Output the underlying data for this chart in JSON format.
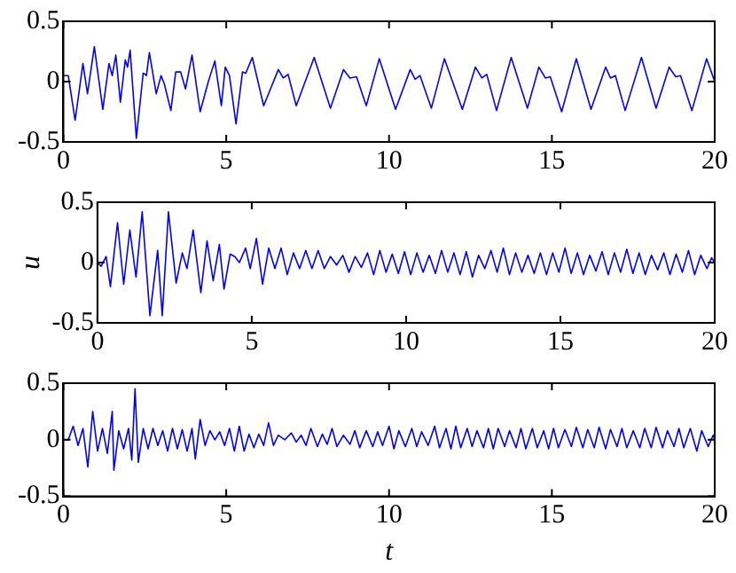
{
  "chart_data": [
    {
      "type": "line",
      "color": "#0000ff",
      "xlim": [
        0,
        20
      ],
      "ylim": [
        -0.5,
        0.5
      ],
      "xticks": [
        0,
        5,
        10,
        15,
        20
      ],
      "yticks": [
        -0.5,
        0,
        0.5
      ],
      "grid": false,
      "legend": false,
      "marker": "none",
      "line_style": "solid",
      "x": [
        0,
        0.15,
        0.36,
        0.6,
        0.74,
        0.95,
        1.21,
        1.4,
        1.5,
        1.61,
        1.75,
        1.9,
        1.97,
        2.05,
        2.24,
        2.45,
        2.55,
        2.64,
        2.85,
        3.0,
        3.1,
        3.3,
        3.45,
        3.6,
        3.75,
        3.95,
        4.2,
        4.45,
        4.65,
        4.85,
        4.97,
        5.1,
        5.3,
        5.5,
        5.6,
        5.8,
        6.15,
        6.6,
        6.75,
        6.9,
        7.15,
        7.7,
        8.2,
        8.6,
        8.8,
        9.0,
        9.3,
        9.7,
        10.2,
        10.65,
        10.8,
        10.95,
        11.3,
        11.7,
        12.25,
        12.65,
        12.85,
        13.0,
        13.3,
        13.75,
        14.25,
        14.6,
        14.8,
        14.95,
        15.3,
        15.75,
        16.2,
        16.65,
        16.8,
        16.95,
        17.25,
        17.75,
        18.2,
        18.6,
        18.8,
        18.95,
        19.3,
        19.75,
        20
      ],
      "values": [
        0.05,
        0.05,
        -0.32,
        0.15,
        -0.1,
        0.29,
        -0.23,
        0.15,
        0.05,
        0.22,
        -0.17,
        0.18,
        0.12,
        0.26,
        -0.47,
        0.07,
        0.05,
        0.24,
        -0.1,
        0.05,
        -0.02,
        -0.24,
        0.08,
        0.08,
        -0.06,
        0.22,
        -0.25,
        0.0,
        0.17,
        -0.2,
        0.12,
        0.05,
        -0.35,
        0.08,
        0.07,
        0.2,
        -0.2,
        0.1,
        0.03,
        0.06,
        -0.2,
        0.2,
        -0.22,
        0.1,
        0.03,
        0.04,
        -0.2,
        0.19,
        -0.23,
        0.1,
        0.02,
        0.05,
        -0.22,
        0.19,
        -0.23,
        0.12,
        0.03,
        0.06,
        -0.24,
        0.2,
        -0.22,
        0.12,
        0.03,
        0.04,
        -0.25,
        0.19,
        -0.23,
        0.12,
        0.03,
        0.05,
        -0.24,
        0.2,
        -0.22,
        0.12,
        0.04,
        0.05,
        -0.24,
        0.19,
        0.0
      ]
    },
    {
      "type": "line",
      "color": "#0000ff",
      "ylabel": "u",
      "xlim": [
        0,
        20
      ],
      "ylim": [
        -0.5,
        0.5
      ],
      "xticks": [
        0,
        5,
        10,
        15,
        20
      ],
      "yticks": [
        -0.5,
        0,
        0.5
      ],
      "grid": false,
      "legend": false,
      "marker": "none",
      "line_style": "solid",
      "x": [
        0,
        0.12,
        0.28,
        0.42,
        0.65,
        0.85,
        1.05,
        1.25,
        1.45,
        1.7,
        1.95,
        2.1,
        2.3,
        2.55,
        2.75,
        2.9,
        3.1,
        3.35,
        3.55,
        3.75,
        3.95,
        4.1,
        4.3,
        4.45,
        4.6,
        4.8,
        4.95,
        5.15,
        5.35,
        5.55,
        5.75,
        5.95,
        6.15,
        6.35,
        6.55,
        6.75,
        6.95,
        7.15,
        7.35,
        7.55,
        7.75,
        7.95,
        8.15,
        8.35,
        8.55,
        8.75,
        8.95,
        9.15,
        9.35,
        9.55,
        9.75,
        9.95,
        10.15,
        10.35,
        10.55,
        10.75,
        10.95,
        11.15,
        11.35,
        11.55,
        11.75,
        11.95,
        12.15,
        12.35,
        12.55,
        12.75,
        12.95,
        13.15,
        13.35,
        13.55,
        13.75,
        13.95,
        14.15,
        14.35,
        14.55,
        14.75,
        14.95,
        15.15,
        15.35,
        15.55,
        15.75,
        15.95,
        16.15,
        16.35,
        16.55,
        16.75,
        16.95,
        17.15,
        17.35,
        17.55,
        17.75,
        17.95,
        18.15,
        18.35,
        18.55,
        18.75,
        18.95,
        19.15,
        19.35,
        19.55,
        19.75,
        19.9,
        20
      ],
      "values": [
        0.0,
        -0.03,
        0.05,
        -0.2,
        0.33,
        -0.18,
        0.27,
        -0.12,
        0.42,
        -0.44,
        0.1,
        -0.44,
        0.42,
        -0.17,
        0.08,
        -0.05,
        0.27,
        -0.25,
        0.18,
        -0.15,
        0.15,
        -0.22,
        0.07,
        0.05,
        0.0,
        0.12,
        -0.05,
        0.2,
        -0.18,
        0.12,
        -0.05,
        0.12,
        -0.1,
        0.08,
        -0.05,
        0.1,
        -0.05,
        0.1,
        -0.05,
        0.05,
        -0.02,
        0.06,
        -0.08,
        0.05,
        -0.04,
        0.08,
        -0.1,
        0.1,
        -0.08,
        0.07,
        -0.09,
        0.09,
        -0.1,
        0.08,
        -0.08,
        0.06,
        -0.09,
        0.1,
        -0.08,
        0.08,
        -0.1,
        0.09,
        -0.12,
        0.06,
        -0.05,
        0.1,
        -0.08,
        0.12,
        -0.1,
        0.08,
        -0.08,
        0.06,
        -0.09,
        0.08,
        -0.1,
        0.08,
        -0.08,
        0.12,
        -0.09,
        0.08,
        -0.1,
        0.06,
        -0.07,
        0.09,
        -0.1,
        0.08,
        -0.08,
        0.11,
        -0.09,
        0.08,
        -0.1,
        0.06,
        -0.06,
        0.08,
        -0.1,
        0.07,
        -0.08,
        0.1,
        -0.1,
        0.06,
        -0.05,
        0.04,
        0.0
      ]
    },
    {
      "type": "line",
      "color": "#0000ff",
      "xlabel": "t",
      "xlim": [
        0,
        20
      ],
      "ylim": [
        -0.5,
        0.5
      ],
      "xticks": [
        0,
        5,
        10,
        15,
        20
      ],
      "yticks": [
        -0.5,
        0,
        0.5
      ],
      "grid": false,
      "legend": false,
      "marker": "none",
      "line_style": "solid",
      "x": [
        0,
        0.15,
        0.3,
        0.45,
        0.6,
        0.75,
        0.9,
        1.05,
        1.2,
        1.35,
        1.5,
        1.55,
        1.7,
        1.85,
        2.0,
        2.1,
        2.2,
        2.3,
        2.45,
        2.6,
        2.75,
        2.9,
        3.05,
        3.2,
        3.35,
        3.5,
        3.65,
        3.8,
        3.95,
        4.05,
        4.2,
        4.35,
        4.5,
        4.65,
        4.8,
        4.95,
        5.1,
        5.25,
        5.4,
        5.55,
        5.7,
        5.85,
        6.0,
        6.15,
        6.3,
        6.45,
        6.6,
        6.8,
        7.0,
        7.15,
        7.3,
        7.45,
        7.6,
        7.8,
        7.95,
        8.1,
        8.25,
        8.4,
        8.6,
        8.8,
        8.95,
        9.1,
        9.3,
        9.5,
        9.65,
        9.8,
        10.0,
        10.15,
        10.3,
        10.5,
        10.7,
        10.85,
        11.0,
        11.2,
        11.4,
        11.55,
        11.75,
        11.9,
        12.05,
        12.2,
        12.4,
        12.55,
        12.7,
        12.9,
        13.05,
        13.2,
        13.35,
        13.55,
        13.7,
        13.9,
        14.05,
        14.2,
        14.4,
        14.55,
        14.75,
        14.9,
        15.05,
        15.2,
        15.4,
        15.6,
        15.75,
        15.95,
        16.1,
        16.3,
        16.45,
        16.65,
        16.8,
        17.0,
        17.15,
        17.3,
        17.5,
        17.7,
        17.85,
        18.05,
        18.2,
        18.4,
        18.55,
        18.75,
        18.9,
        19.05,
        19.25,
        19.45,
        19.6,
        19.8,
        19.95,
        20
      ],
      "values": [
        0.0,
        0.0,
        0.12,
        -0.05,
        0.1,
        -0.24,
        0.25,
        -0.1,
        0.1,
        -0.12,
        0.25,
        -0.27,
        0.08,
        -0.08,
        0.1,
        -0.18,
        0.45,
        -0.2,
        0.1,
        -0.08,
        0.1,
        -0.05,
        0.08,
        -0.1,
        0.1,
        -0.08,
        0.09,
        -0.1,
        0.1,
        -0.17,
        0.18,
        -0.05,
        0.08,
        0.0,
        0.07,
        -0.05,
        0.1,
        -0.1,
        0.12,
        -0.1,
        0.05,
        -0.07,
        0.05,
        -0.05,
        0.15,
        -0.05,
        0.04,
        0.0,
        0.06,
        -0.02,
        0.04,
        -0.05,
        0.1,
        -0.06,
        0.05,
        -0.04,
        0.1,
        -0.06,
        0.04,
        -0.04,
        0.08,
        -0.07,
        0.08,
        -0.06,
        0.07,
        -0.05,
        0.12,
        -0.08,
        0.08,
        -0.06,
        0.1,
        -0.06,
        0.07,
        -0.05,
        0.12,
        -0.07,
        0.1,
        -0.08,
        0.12,
        -0.07,
        0.1,
        -0.06,
        0.08,
        -0.07,
        0.1,
        -0.08,
        0.1,
        -0.06,
        0.08,
        -0.07,
        0.1,
        -0.08,
        0.1,
        -0.07,
        0.08,
        -0.08,
        0.1,
        -0.07,
        0.09,
        -0.06,
        0.11,
        -0.07,
        0.09,
        -0.07,
        0.11,
        -0.08,
        0.09,
        -0.06,
        0.1,
        -0.07,
        0.08,
        -0.07,
        0.1,
        -0.07,
        0.11,
        -0.07,
        0.08,
        -0.06,
        0.1,
        -0.07,
        0.1,
        -0.1,
        0.08,
        -0.06,
        0.04,
        0.0
      ]
    }
  ]
}
